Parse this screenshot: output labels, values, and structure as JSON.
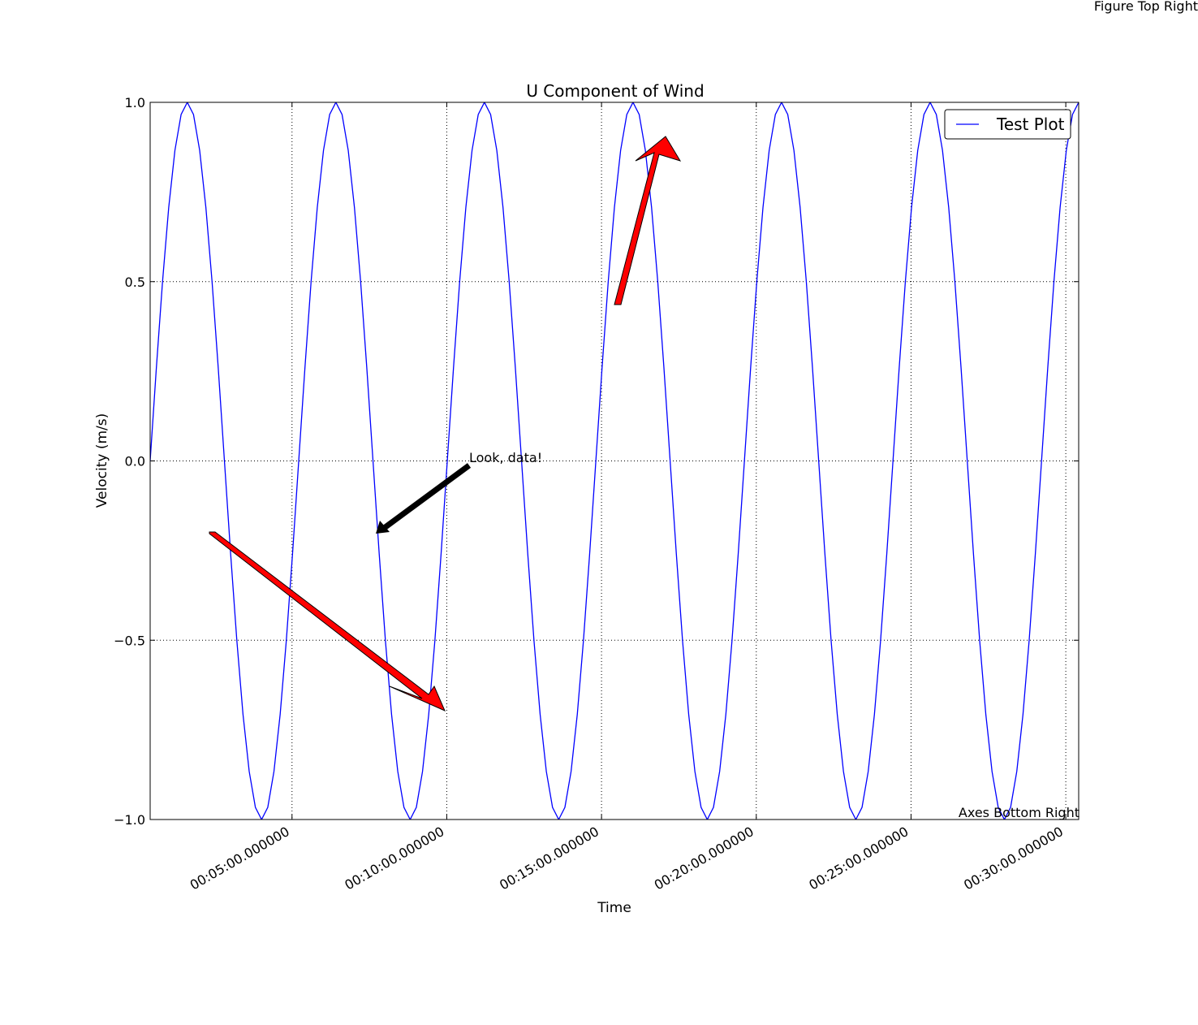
{
  "chart_data": {
    "type": "line",
    "title": "U Component of Wind",
    "x_label": "Time",
    "y_label": "Velocity (m/s)",
    "x": [
      25,
      37,
      49,
      61,
      73,
      85,
      97,
      109,
      121,
      133,
      145,
      157,
      169,
      181,
      193,
      205,
      217,
      229,
      241,
      253,
      265,
      277,
      289,
      301,
      313,
      325,
      337,
      349,
      361,
      373,
      385,
      397,
      409,
      421,
      433,
      445,
      457,
      469,
      481,
      493,
      505,
      517,
      529,
      541,
      553,
      565,
      577,
      589,
      601,
      613,
      625,
      637,
      649,
      661,
      673,
      685,
      697,
      709,
      721,
      733,
      745,
      757,
      769,
      781,
      793,
      805,
      817,
      829,
      841,
      853,
      865,
      877,
      889,
      901,
      913,
      925,
      937,
      949,
      961,
      973,
      985,
      997,
      1009,
      1021,
      1033,
      1045,
      1057,
      1069,
      1081,
      1093,
      1105,
      1117,
      1129,
      1141,
      1153,
      1165,
      1177,
      1189,
      1201,
      1213,
      1225,
      1237,
      1249,
      1261,
      1273,
      1285,
      1297,
      1309,
      1321,
      1333,
      1345,
      1357,
      1369,
      1381,
      1393,
      1405,
      1417,
      1429,
      1441,
      1453,
      1465,
      1477,
      1489,
      1501,
      1513,
      1525,
      1537,
      1549,
      1561,
      1573,
      1585,
      1597,
      1609,
      1621,
      1633,
      1645,
      1657,
      1669,
      1681,
      1693,
      1705,
      1717,
      1729,
      1741,
      1753,
      1765,
      1777,
      1789,
      1801,
      1813,
      1825
    ],
    "series": [
      {
        "name": "Test Plot",
        "color": "#0000ff",
        "values": [
          0,
          0.259,
          0.5,
          0.707,
          0.866,
          0.966,
          1,
          0.966,
          0.866,
          0.707,
          0.5,
          0.259,
          0,
          -0.259,
          -0.5,
          -0.707,
          -0.866,
          -0.966,
          -1,
          -0.966,
          -0.866,
          -0.707,
          -0.5,
          -0.259,
          0,
          0.259,
          0.5,
          0.707,
          0.866,
          0.966,
          1,
          0.966,
          0.866,
          0.707,
          0.5,
          0.259,
          0,
          -0.259,
          -0.5,
          -0.707,
          -0.866,
          -0.966,
          -1,
          -0.966,
          -0.866,
          -0.707,
          -0.5,
          -0.259,
          0,
          0.259,
          0.5,
          0.707,
          0.866,
          0.966,
          1,
          0.966,
          0.866,
          0.707,
          0.5,
          0.259,
          0,
          -0.259,
          -0.5,
          -0.707,
          -0.866,
          -0.966,
          -1,
          -0.966,
          -0.866,
          -0.707,
          -0.5,
          -0.259,
          0,
          0.259,
          0.5,
          0.707,
          0.866,
          0.966,
          1,
          0.966,
          0.866,
          0.707,
          0.5,
          0.259,
          0,
          -0.259,
          -0.5,
          -0.707,
          -0.866,
          -0.966,
          -1,
          -0.966,
          -0.866,
          -0.707,
          -0.5,
          -0.259,
          0,
          0.259,
          0.5,
          0.707,
          0.866,
          0.966,
          1,
          0.966,
          0.866,
          0.707,
          0.5,
          0.259,
          0,
          -0.259,
          -0.5,
          -0.707,
          -0.866,
          -0.966,
          -1,
          -0.966,
          -0.866,
          -0.707,
          -0.5,
          -0.259,
          0,
          0.259,
          0.5,
          0.707,
          0.866,
          0.966,
          1,
          0.966,
          0.866,
          0.707,
          0.5,
          0.259,
          0,
          -0.259,
          -0.5,
          -0.707,
          -0.866,
          -0.966,
          -1,
          -0.966,
          -0.866,
          -0.707,
          -0.5,
          -0.259,
          0,
          0.259,
          0.5,
          0.707,
          0.866,
          0.966,
          1
        ]
      }
    ],
    "xlim": [
      25,
      1825
    ],
    "xticks": [
      {
        "value": 300,
        "label": "00:05:00.000000"
      },
      {
        "value": 600,
        "label": "00:10:00.000000"
      },
      {
        "value": 900,
        "label": "00:15:00.000000"
      },
      {
        "value": 1200,
        "label": "00:20:00.000000"
      },
      {
        "value": 1500,
        "label": "00:25:00.000000"
      },
      {
        "value": 1800,
        "label": "00:30:00.000000"
      }
    ],
    "ylim": [
      -1,
      1
    ],
    "yticks": [
      {
        "value": -1,
        "label": "−1.0"
      },
      {
        "value": -0.5,
        "label": "−0.5"
      },
      {
        "value": 0,
        "label": "0.0"
      },
      {
        "value": 0.5,
        "label": "0.5"
      },
      {
        "value": 1,
        "label": "1.0"
      }
    ],
    "grid": true,
    "legend_position": "upper-right",
    "annotations": [
      "Look, data!",
      "Axes Bottom Right",
      "Figure Top Right"
    ]
  }
}
